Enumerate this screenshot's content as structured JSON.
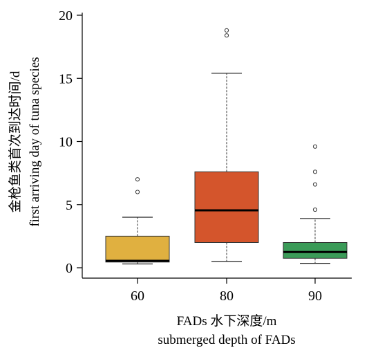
{
  "chart_data": {
    "type": "box",
    "xlabel_lines": [
      "FADs 水下深度/m",
      "submerged depth of FADs"
    ],
    "ylabel_lines": [
      "金枪鱼类首次到达时间/d",
      "first arriving day of tuna species"
    ],
    "ylim": [
      -0.8,
      20.2
    ],
    "yticks": [
      0,
      5,
      10,
      15,
      20
    ],
    "categories": [
      "60",
      "80",
      "90"
    ],
    "boxes": [
      {
        "category": "60",
        "whisker_low": 0.3,
        "q1": 0.45,
        "median": 0.55,
        "q3": 2.5,
        "whisker_high": 4.0,
        "outliers": [
          6.0,
          7.0
        ],
        "color": "#E0B040"
      },
      {
        "category": "80",
        "whisker_low": 0.5,
        "q1": 2.0,
        "median": 4.55,
        "q3": 7.6,
        "whisker_high": 15.4,
        "outliers": [
          18.4,
          18.8
        ],
        "color": "#D4552C"
      },
      {
        "category": "90",
        "whisker_low": 0.35,
        "q1": 0.75,
        "median": 1.25,
        "q3": 2.0,
        "whisker_high": 3.9,
        "outliers": [
          4.6,
          6.6,
          7.6,
          9.6
        ],
        "color": "#3B9B58"
      }
    ]
  }
}
